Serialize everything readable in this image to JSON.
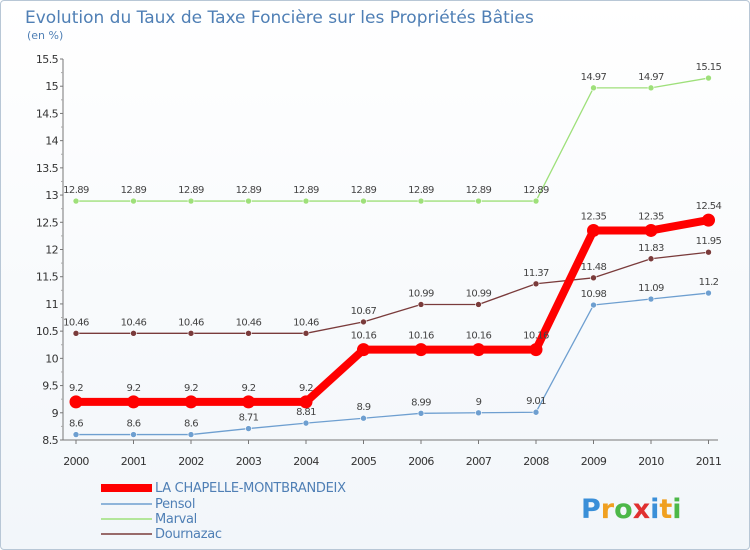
{
  "chart_data": {
    "type": "line",
    "title": "Evolution du Taux de Taxe Foncière sur les Propriétés Bâties",
    "subtitle": "(en %)",
    "x": [
      "2000",
      "2001",
      "2002",
      "2003",
      "2004",
      "2005",
      "2006",
      "2007",
      "2008",
      "2009",
      "2010",
      "2011"
    ],
    "ylim": [
      8.5,
      15.5
    ],
    "yticks": [
      "8.5",
      "9",
      "9.5",
      "10",
      "10.5",
      "11",
      "11.5",
      "12",
      "12.5",
      "13",
      "13.5",
      "14",
      "14.5",
      "15",
      "15.5"
    ],
    "grid": false,
    "legend_position": "bottom-left",
    "series": [
      {
        "name": "LA CHAPELLE-MONTBRANDEIX",
        "color": "#ff0000",
        "values": [
          9.2,
          9.2,
          9.2,
          9.2,
          9.2,
          10.16,
          10.16,
          10.16,
          10.16,
          12.35,
          12.35,
          12.54
        ],
        "labels": [
          "9.2",
          "9.2",
          "9.2",
          "9.2",
          "9.2",
          "10.16",
          "10.16",
          "10.16",
          "10.16",
          "12.35",
          "12.35",
          "12.54"
        ]
      },
      {
        "name": "Pensol",
        "color": "#6e9fd0",
        "values": [
          8.6,
          8.6,
          8.6,
          8.71,
          8.81,
          8.9,
          8.99,
          9,
          9.01,
          10.98,
          11.09,
          11.2
        ],
        "labels": [
          "8.6",
          "8.6",
          "8.6",
          "8.71",
          "8.81",
          "8.9",
          "8.99",
          "9",
          "9.01",
          "10.98",
          "11.09",
          "11.2"
        ]
      },
      {
        "name": "Marval",
        "color": "#9ee07a",
        "values": [
          12.89,
          12.89,
          12.89,
          12.89,
          12.89,
          12.89,
          12.89,
          12.89,
          12.89,
          14.97,
          14.97,
          15.15
        ],
        "labels": [
          "12.89",
          "12.89",
          "12.89",
          "12.89",
          "12.89",
          "12.89",
          "12.89",
          "12.89",
          "12.89",
          "14.97",
          "14.97",
          "15.15"
        ]
      },
      {
        "name": "Dournazac",
        "color": "#7a3b3b",
        "values": [
          10.46,
          10.46,
          10.46,
          10.46,
          10.46,
          10.67,
          10.99,
          10.99,
          11.37,
          11.48,
          11.83,
          11.95
        ],
        "labels": [
          "10.46",
          "10.46",
          "10.46",
          "10.46",
          "10.46",
          "10.67",
          "10.99",
          "10.99",
          "11.37",
          "11.48",
          "11.83",
          "11.95"
        ]
      }
    ]
  },
  "logo": {
    "letters": [
      "P",
      "r",
      "o",
      "x",
      "i",
      "t",
      "i"
    ],
    "colors": [
      "#3a8fd8",
      "#f0a020",
      "#4db848",
      "#e03030",
      "#3a8fd8",
      "#f0a020",
      "#4db848"
    ]
  }
}
